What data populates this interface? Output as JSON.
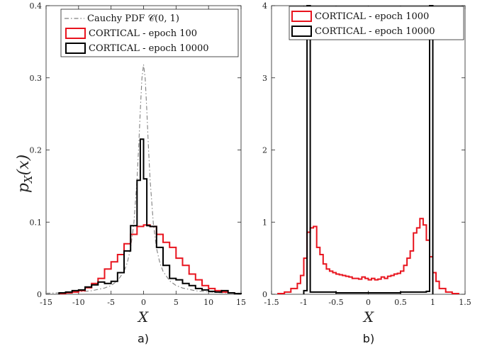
{
  "chart_data": [
    {
      "type": "line",
      "panel_label": "a)",
      "xlabel": "X",
      "ylabel": "p_X(x)",
      "xlim": [
        -15,
        15
      ],
      "ylim": [
        0,
        0.4
      ],
      "xticks": [
        "-15",
        "-10",
        "-5",
        "0",
        "5",
        "10",
        "15"
      ],
      "yticks": [
        "0",
        "0.1",
        "0.2",
        "0.3",
        "0.4"
      ],
      "legend": "top-right",
      "grid": false,
      "colors": {
        "cauchy": "#808080",
        "epoch100": "#e8141e",
        "epoch10000": "#000000"
      },
      "series": [
        {
          "name": "Cauchy PDF 𝒞(0, 1)",
          "style": "dash-dot",
          "x": [
            -15,
            -12,
            -10,
            -8,
            -6,
            -5,
            -4,
            -3,
            -2.5,
            -2,
            -1.5,
            -1,
            -0.75,
            -0.5,
            -0.25,
            0,
            0.25,
            0.5,
            0.75,
            1,
            1.5,
            2,
            2.5,
            3,
            4,
            5,
            6,
            8,
            10,
            12,
            15
          ],
          "y": [
            0.0014,
            0.0022,
            0.0032,
            0.0049,
            0.0086,
            0.0122,
            0.0187,
            0.0318,
            0.0439,
            0.0637,
            0.0979,
            0.1592,
            0.2037,
            0.2546,
            0.2996,
            0.3183,
            0.2996,
            0.2546,
            0.2037,
            0.1592,
            0.0979,
            0.0637,
            0.0439,
            0.0318,
            0.0187,
            0.0122,
            0.0086,
            0.0049,
            0.0032,
            0.0022,
            0.0014
          ]
        },
        {
          "name": "CORTICAL - epoch 100",
          "style": "step",
          "edges": [
            -13,
            -12,
            -11,
            -10,
            -9,
            -8,
            -7,
            -6,
            -5,
            -4,
            -3,
            -2,
            -1,
            0,
            1,
            2,
            3,
            4,
            5,
            6,
            7,
            8,
            9,
            10,
            11,
            12,
            13,
            14,
            15
          ],
          "values": [
            0.001,
            0.002,
            0.003,
            0.005,
            0.009,
            0.015,
            0.022,
            0.035,
            0.045,
            0.055,
            0.07,
            0.083,
            0.094,
            0.096,
            0.094,
            0.083,
            0.072,
            0.065,
            0.05,
            0.04,
            0.028,
            0.02,
            0.012,
            0.008,
            0.005,
            0.003,
            0.002,
            0.001
          ]
        },
        {
          "name": "CORTICAL - epoch 10000",
          "style": "step",
          "edges": [
            -13,
            -12,
            -11,
            -10,
            -9,
            -8,
            -7,
            -6,
            -5,
            -4,
            -3,
            -2,
            -1,
            -0.5,
            0,
            0.5,
            1,
            2,
            3,
            4,
            5,
            6,
            7,
            8,
            9,
            10,
            11,
            12,
            13,
            14,
            15
          ],
          "values": [
            0.002,
            0.003,
            0.005,
            0.006,
            0.01,
            0.013,
            0.017,
            0.015,
            0.018,
            0.03,
            0.06,
            0.095,
            0.158,
            0.215,
            0.16,
            0.095,
            0.094,
            0.065,
            0.04,
            0.022,
            0.02,
            0.015,
            0.012,
            0.008,
            0.006,
            0.004,
            0.003,
            0.005,
            0.002,
            0.001
          ]
        }
      ]
    },
    {
      "type": "line",
      "panel_label": "b)",
      "xlabel": "X",
      "ylabel": "",
      "xlim": [
        -1.5,
        1.5
      ],
      "ylim": [
        0,
        4
      ],
      "xticks": [
        "-1.5",
        "-1",
        "-0.5",
        "0",
        "0.5",
        "1",
        "1.5"
      ],
      "yticks": [
        "0",
        "1",
        "2",
        "3",
        "4"
      ],
      "legend": "top-right",
      "grid": false,
      "colors": {
        "epoch1000": "#e8141e",
        "epoch10000": "#000000"
      },
      "series": [
        {
          "name": "CORTICAL - epoch 1000",
          "style": "step",
          "edges": [
            -1.4,
            -1.3,
            -1.2,
            -1.1,
            -1.05,
            -1.0,
            -0.95,
            -0.9,
            -0.85,
            -0.8,
            -0.75,
            -0.7,
            -0.65,
            -0.6,
            -0.55,
            -0.5,
            -0.45,
            -0.4,
            -0.35,
            -0.3,
            -0.25,
            -0.2,
            -0.15,
            -0.1,
            -0.05,
            0,
            0.05,
            0.1,
            0.15,
            0.2,
            0.25,
            0.3,
            0.35,
            0.4,
            0.45,
            0.5,
            0.55,
            0.6,
            0.65,
            0.7,
            0.75,
            0.8,
            0.85,
            0.9,
            0.95,
            1.0,
            1.05,
            1.1,
            1.2,
            1.3,
            1.4
          ],
          "values": [
            0.01,
            0.03,
            0.08,
            0.15,
            0.26,
            0.5,
            0.86,
            0.92,
            0.94,
            0.65,
            0.55,
            0.42,
            0.35,
            0.32,
            0.3,
            0.28,
            0.27,
            0.26,
            0.25,
            0.24,
            0.22,
            0.22,
            0.21,
            0.24,
            0.22,
            0.2,
            0.22,
            0.2,
            0.21,
            0.24,
            0.22,
            0.25,
            0.26,
            0.28,
            0.29,
            0.32,
            0.4,
            0.5,
            0.6,
            0.85,
            0.92,
            1.05,
            0.96,
            0.75,
            0.52,
            0.3,
            0.18,
            0.08,
            0.03,
            0.01
          ]
        },
        {
          "name": "CORTICAL - epoch 10000",
          "style": "step",
          "spikes": [
            -0.95,
            0.95
          ],
          "edges": [
            -1.0,
            -0.95,
            -0.9,
            -0.5,
            0,
            0.5,
            0.9,
            0.95,
            1.0
          ],
          "values": [
            0.05,
            4.2,
            0.03,
            0.02,
            0.02,
            0.03,
            0.04,
            4.2
          ]
        }
      ]
    }
  ]
}
